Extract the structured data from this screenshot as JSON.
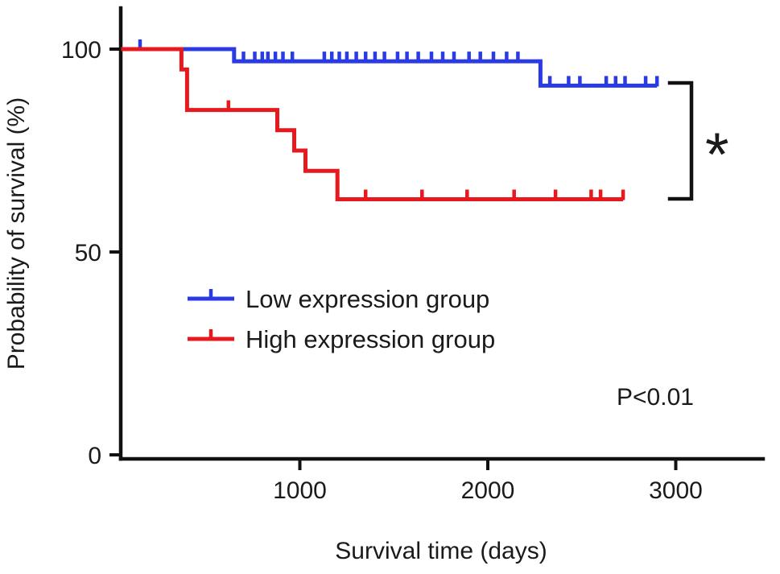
{
  "chart_data": {
    "type": "line",
    "subtype": "kaplan_meier_step",
    "title": "",
    "xlabel": "Survival time (days)",
    "ylabel": "Probability of survival (%)",
    "xlim": [
      0,
      3400
    ],
    "ylim": [
      0,
      110
    ],
    "xticks": [
      1000,
      2000,
      3000
    ],
    "yticks": [
      0,
      50,
      100
    ],
    "grid": false,
    "legend_position": "inside-left-middle",
    "annotation": "P<0.01",
    "significance_marker": "*",
    "series": [
      {
        "name": "Low expression group",
        "color": "#2b3be4",
        "steps": [
          [
            0,
            100
          ],
          [
            650,
            100
          ],
          [
            650,
            97
          ],
          [
            2280,
            97
          ],
          [
            2280,
            91
          ],
          [
            2900,
            91
          ]
        ],
        "censor_marks": [
          [
            150,
            100
          ],
          [
            700,
            97
          ],
          [
            760,
            97
          ],
          [
            800,
            97
          ],
          [
            830,
            97
          ],
          [
            870,
            97
          ],
          [
            910,
            97
          ],
          [
            960,
            97
          ],
          [
            1130,
            97
          ],
          [
            1170,
            97
          ],
          [
            1210,
            97
          ],
          [
            1250,
            97
          ],
          [
            1300,
            97
          ],
          [
            1350,
            97
          ],
          [
            1400,
            97
          ],
          [
            1450,
            97
          ],
          [
            1520,
            97
          ],
          [
            1570,
            97
          ],
          [
            1630,
            97
          ],
          [
            1700,
            97
          ],
          [
            1760,
            97
          ],
          [
            1820,
            97
          ],
          [
            1900,
            97
          ],
          [
            1960,
            97
          ],
          [
            2030,
            97
          ],
          [
            2100,
            97
          ],
          [
            2160,
            97
          ],
          [
            2330,
            91
          ],
          [
            2430,
            91
          ],
          [
            2490,
            91
          ],
          [
            2630,
            91
          ],
          [
            2680,
            91
          ],
          [
            2730,
            91
          ],
          [
            2840,
            91
          ],
          [
            2900,
            91
          ]
        ]
      },
      {
        "name": "High expression group",
        "color": "#e6191f",
        "steps": [
          [
            0,
            100
          ],
          [
            370,
            100
          ],
          [
            370,
            95
          ],
          [
            400,
            95
          ],
          [
            400,
            85
          ],
          [
            880,
            85
          ],
          [
            880,
            80
          ],
          [
            970,
            80
          ],
          [
            970,
            75
          ],
          [
            1030,
            75
          ],
          [
            1030,
            70
          ],
          [
            1200,
            70
          ],
          [
            1200,
            63
          ],
          [
            2720,
            63
          ]
        ],
        "censor_marks": [
          [
            620,
            85
          ],
          [
            1350,
            63
          ],
          [
            1650,
            63
          ],
          [
            1890,
            63
          ],
          [
            2140,
            63
          ],
          [
            2360,
            63
          ],
          [
            2550,
            63
          ],
          [
            2600,
            63
          ],
          [
            2720,
            63
          ]
        ]
      }
    ]
  }
}
